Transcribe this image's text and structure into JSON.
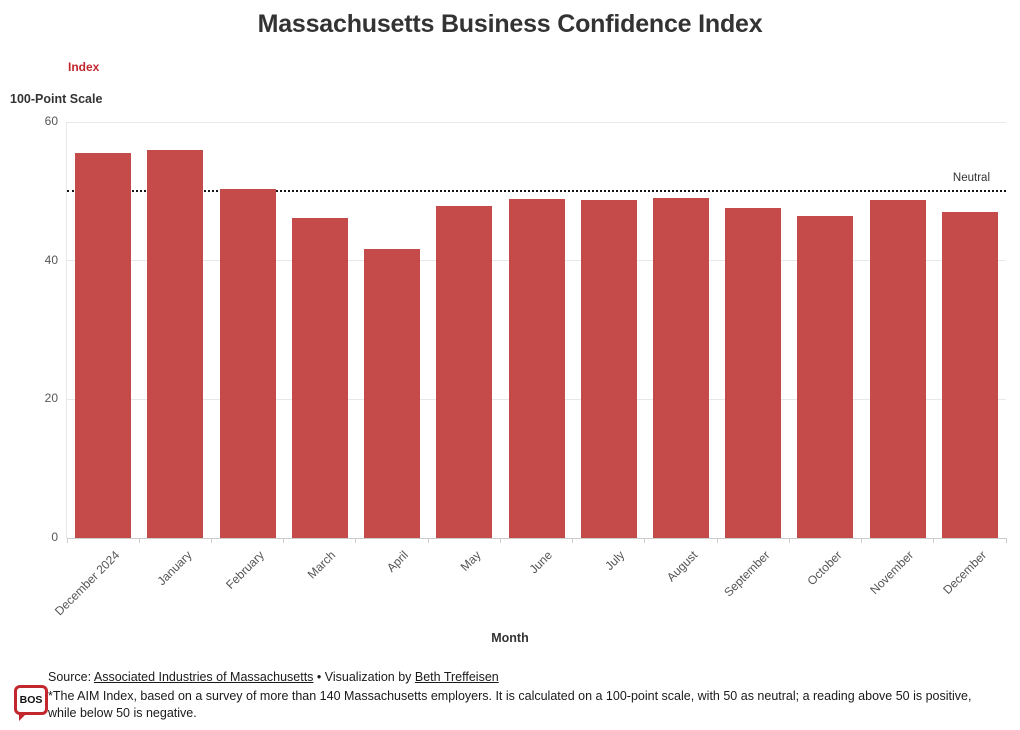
{
  "header": {
    "title": "Massachusetts Business Confidence Index"
  },
  "axes": {
    "y_name": "Index",
    "y_subtitle": "100-Point Scale",
    "x_title": "Month"
  },
  "chart_data": {
    "type": "bar",
    "title": "Massachusetts Business Confidence Index",
    "xlabel": "Month",
    "ylabel": "Index — 100-Point Scale",
    "ylim": [
      0,
      60
    ],
    "yticks": [
      0,
      20,
      40,
      60
    ],
    "grid": true,
    "legend_position": "none",
    "categories": [
      "December 2024",
      "January",
      "February",
      "March",
      "April",
      "May",
      "June",
      "July",
      "August",
      "September",
      "October",
      "November",
      "December"
    ],
    "values": [
      55.6,
      56.0,
      50.3,
      46.1,
      41.7,
      47.9,
      48.9,
      48.7,
      49.0,
      47.6,
      46.5,
      48.8,
      47.0
    ],
    "annotation": {
      "label": "Neutral",
      "value": 50,
      "style": "dotted"
    }
  },
  "footer": {
    "logo_text": "BOS",
    "source_prefix": "Source: ",
    "source_link": "Associated Industries of Massachusetts",
    "separator": " • ",
    "viz_prefix": "Visualization by ",
    "viz_link": "Beth Treffeisen",
    "note": "*The AIM Index, based on a survey of more than 140 Massachusetts employers. It is calculated on a 100-point scale, with 50 as neutral; a reading above 50 is positive, while below 50 is negative."
  },
  "colors": {
    "bar": "#c54b4a",
    "accent_red": "#c1272d",
    "title_text": "#333333",
    "tick_text": "#565656",
    "grid": "#e8e8e8",
    "neutral_line": "#151515"
  }
}
